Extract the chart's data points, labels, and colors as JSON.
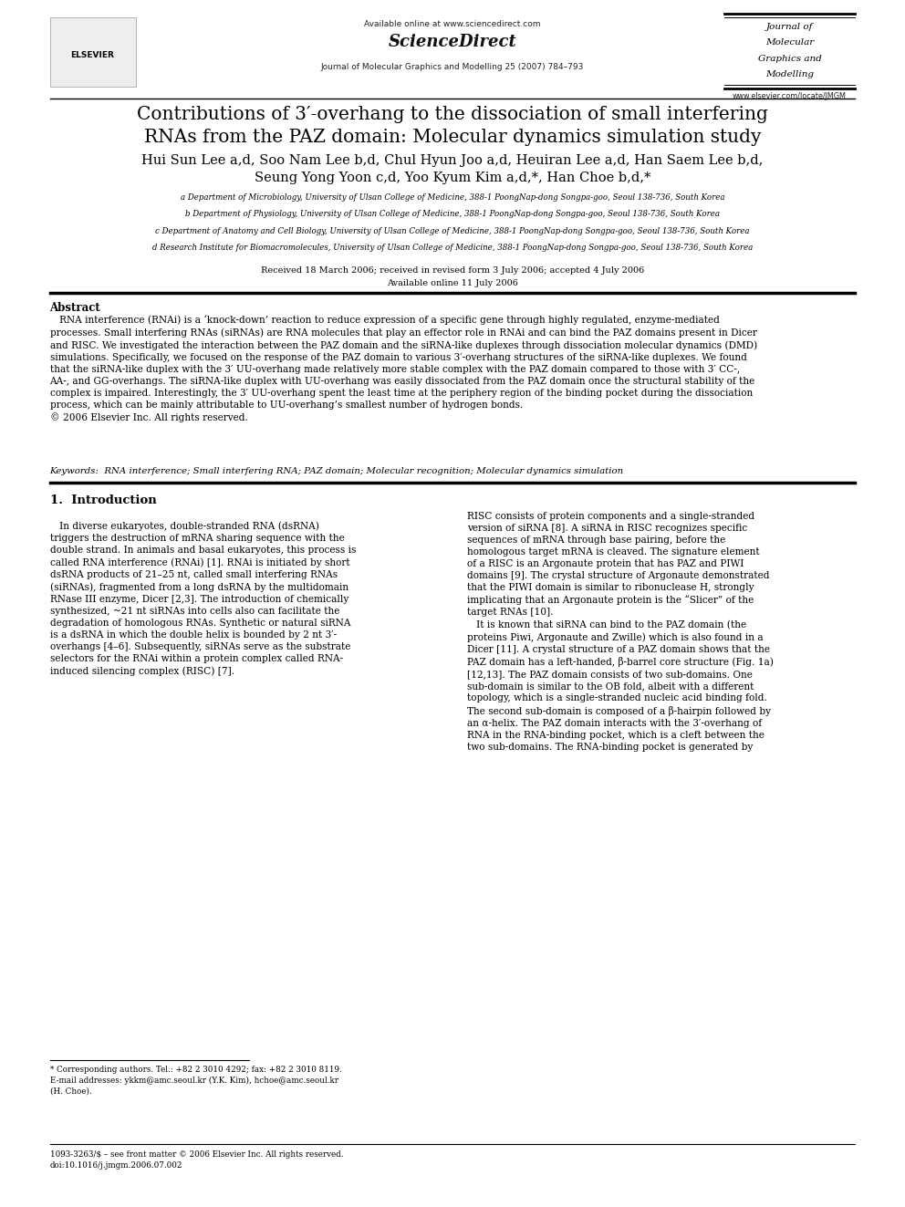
{
  "page_width": 9.92,
  "page_height": 13.23,
  "bg_color": "#ffffff",
  "header_available": "Available online at www.sciencedirect.com",
  "header_journal_center": "Journal of Molecular Graphics and Modelling 25 (2007) 784–793",
  "header_journal_right": [
    "Journal of",
    "Molecular",
    "Graphics and",
    "Modelling"
  ],
  "header_url_right": "www.elsevier.com/locate/JMGM",
  "header_elsevier": "ELSEVIER",
  "title": "Contributions of 3′-overhang to the dissociation of small interfering\nRNAs from the PAZ domain: Molecular dynamics simulation study",
  "authors_line1": "Hui Sun Lee a,d, Soo Nam Lee b,d, Chul Hyun Joo a,d, Heuiran Lee a,d, Han Saem Lee b,d,",
  "authors_line2": "Seung Yong Yoon c,d, Yoo Kyum Kim a,d,*, Han Choe b,d,*",
  "aff_a": "a Department of Microbiology, University of Ulsan College of Medicine, 388-1 PoongNap-dong Songpa-goo, Seoul 138-736, South Korea",
  "aff_b": "b Department of Physiology, University of Ulsan College of Medicine, 388-1 PoongNap-dong Songpa-goo, Seoul 138-736, South Korea",
  "aff_c": "c Department of Anatomy and Cell Biology, University of Ulsan College of Medicine, 388-1 PoongNap-dong Songpa-goo, Seoul 138-736, South Korea",
  "aff_d": "d Research Institute for Biomacromolecules, University of Ulsan College of Medicine, 388-1 PoongNap-dong Songpa-goo, Seoul 138-736, South Korea",
  "received": "Received 18 March 2006; received in revised form 3 July 2006; accepted 4 July 2006",
  "available_online": "Available online 11 July 2006",
  "abstract_title": "Abstract",
  "abstract_body": "   RNA interference (RNAi) is a ‘knock-down’ reaction to reduce expression of a specific gene through highly regulated, enzyme-mediated\nprocesses. Small interfering RNAs (siRNAs) are RNA molecules that play an effector role in RNAi and can bind the PAZ domains present in Dicer\nand RISC. We investigated the interaction between the PAZ domain and the siRNA-like duplexes through dissociation molecular dynamics (DMD)\nsimulations. Specifically, we focused on the response of the PAZ domain to various 3′-overhang structures of the siRNA-like duplexes. We found\nthat the siRNA-like duplex with the 3′ UU-overhang made relatively more stable complex with the PAZ domain compared to those with 3′ CC-,\nAA-, and GG-overhangs. The siRNA-like duplex with UU-overhang was easily dissociated from the PAZ domain once the structural stability of the\ncomplex is impaired. Interestingly, the 3′ UU-overhang spent the least time at the periphery region of the binding pocket during the dissociation\nprocess, which can be mainly attributable to UU-overhang’s smallest number of hydrogen bonds.\n© 2006 Elsevier Inc. All rights reserved.",
  "keywords": "Keywords:  RNA interference; Small interfering RNA; PAZ domain; Molecular recognition; Molecular dynamics simulation",
  "sec1_title": "1.  Introduction",
  "col1_text": "   In diverse eukaryotes, double-stranded RNA (dsRNA)\ntriggers the destruction of mRNA sharing sequence with the\ndouble strand. In animals and basal eukaryotes, this process is\ncalled RNA interference (RNAi) [1]. RNAi is initiated by short\ndsRNA products of 21–25 nt, called small interfering RNAs\n(siRNAs), fragmented from a long dsRNA by the multidomain\nRNase III enzyme, Dicer [2,3]. The introduction of chemically\nsynthesized, ~21 nt siRNAs into cells also can facilitate the\ndegradation of homologous RNAs. Synthetic or natural siRNA\nis a dsRNA in which the double helix is bounded by 2 nt 3′-\noverhangs [4–6]. Subsequently, siRNAs serve as the substrate\nselectors for the RNAi within a protein complex called RNA-\ninduced silencing complex (RISC) [7].",
  "col2_text": "RISC consists of protein components and a single-stranded\nversion of siRNA [8]. A siRNA in RISC recognizes specific\nsequences of mRNA through base pairing, before the\nhomologous target mRNA is cleaved. The signature element\nof a RISC is an Argonaute protein that has PAZ and PIWI\ndomains [9]. The crystal structure of Argonaute demonstrated\nthat the PIWI domain is similar to ribonuclease H, strongly\nimplicating that an Argonaute protein is the “Slicer” of the\ntarget RNAs [10].\n   It is known that siRNA can bind to the PAZ domain (the\nproteins Piwi, Argonaute and Zwille) which is also found in a\nDicer [11]. A crystal structure of a PAZ domain shows that the\nPAZ domain has a left-handed, β-barrel core structure (Fig. 1a)\n[12,13]. The PAZ domain consists of two sub-domains. One\nsub-domain is similar to the OB fold, albeit with a different\ntopology, which is a single-stranded nucleic acid binding fold.\nThe second sub-domain is composed of a β-hairpin followed by\nan α-helix. The PAZ domain interacts with the 3′-overhang of\nRNA in the RNA-binding pocket, which is a cleft between the\ntwo sub-domains. The RNA-binding pocket is generated by",
  "footnote1": "* Corresponding authors. Tel.: +82 2 3010 4292; fax: +82 2 3010 8119.",
  "footnote2": "E-mail addresses: ykkm@amc.seoul.kr (Y.K. Kim), hchoe@amc.seoul.kr",
  "footnote3": "(H. Choe).",
  "bottom1": "1093-3263/$ – see front matter © 2006 Elsevier Inc. All rights reserved.",
  "bottom2": "doi:10.1016/j.jmgm.2006.07.002"
}
